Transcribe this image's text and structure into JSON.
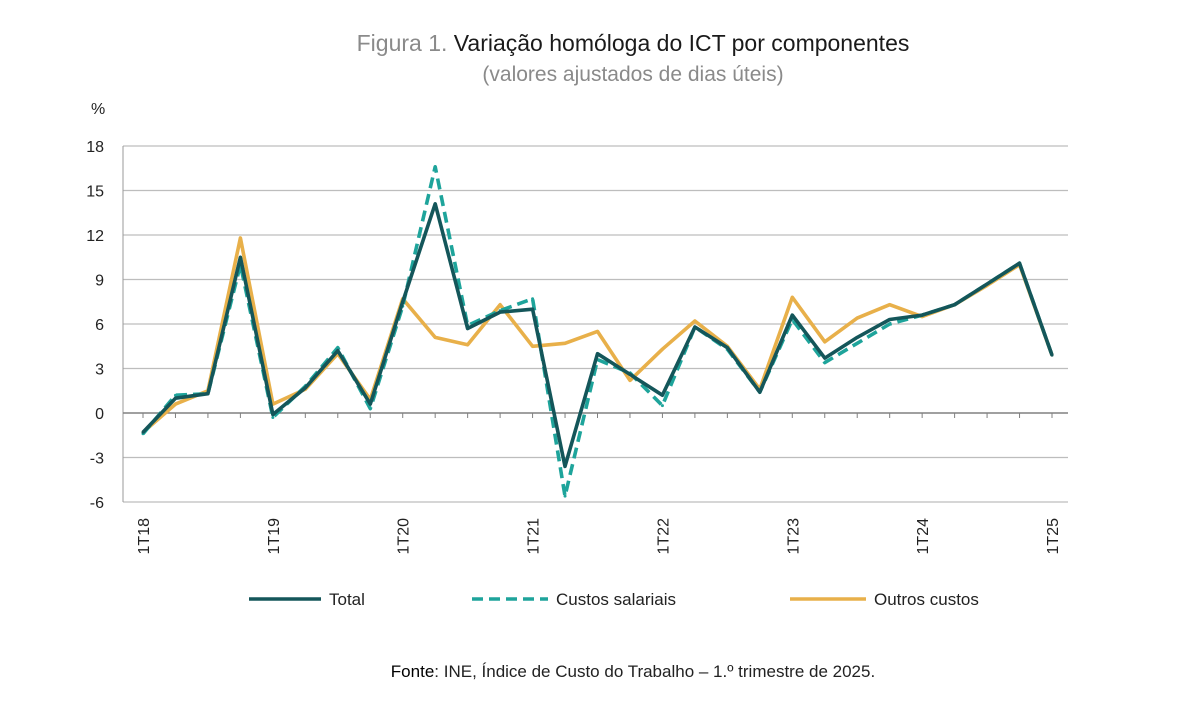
{
  "header": {
    "title_prefix": "Figura 1.",
    "title_main": "Variação homóloga do ICT por componentes",
    "subtitle": "(valores ajustados de dias úteis)"
  },
  "footer": {
    "source_label": "Fonte",
    "source_text": ": INE, Índice de Custo do Trabalho – 1.º trimestre de 2025."
  },
  "chart_data": {
    "type": "line",
    "ylabel": "%",
    "ylim": [
      -6,
      18
    ],
    "yticks": [
      -6,
      -3,
      0,
      3,
      6,
      9,
      12,
      15,
      18
    ],
    "ytick_labels": [
      "-6",
      "-3",
      "0",
      "3",
      "6",
      "9",
      "12",
      "15",
      "18"
    ],
    "grid": true,
    "legend_position": "bottom",
    "x": [
      "1T18",
      "2T18",
      "3T18",
      "4T18",
      "1T19",
      "2T19",
      "3T19",
      "4T19",
      "1T20",
      "2T20",
      "3T20",
      "4T20",
      "1T21",
      "2T21",
      "3T21",
      "4T21",
      "1T22",
      "2T22",
      "3T22",
      "4T22",
      "1T23",
      "2T23",
      "3T23",
      "4T23",
      "1T24",
      "2T24",
      "3T24",
      "4T24",
      "1T25"
    ],
    "x_tick_labels": [
      {
        "index": 0,
        "label": "1T18"
      },
      {
        "index": 4,
        "label": "1T19"
      },
      {
        "index": 8,
        "label": "1T20"
      },
      {
        "index": 12,
        "label": "1T21"
      },
      {
        "index": 16,
        "label": "1T22"
      },
      {
        "index": 20,
        "label": "1T23"
      },
      {
        "index": 24,
        "label": "1T24"
      },
      {
        "index": 28,
        "label": "1T25"
      }
    ],
    "series": [
      {
        "name": "Total",
        "color": "#14565a",
        "dash": "solid",
        "values": [
          -1.3,
          1.0,
          1.3,
          10.5,
          -0.1,
          1.7,
          4.2,
          0.6,
          7.5,
          14.1,
          5.7,
          6.8,
          7.0,
          -3.6,
          4.0,
          2.6,
          1.2,
          5.8,
          4.4,
          1.4,
          6.6,
          3.7,
          5.1,
          6.3,
          6.6,
          7.3,
          8.7,
          10.1,
          3.9
        ]
      },
      {
        "name": "Custos salariais",
        "color": "#1ea49b",
        "dash": "dashed",
        "values": [
          -1.4,
          1.2,
          1.3,
          10.0,
          -0.3,
          1.8,
          4.4,
          0.3,
          7.2,
          16.6,
          5.9,
          6.9,
          7.7,
          -5.6,
          3.6,
          2.7,
          0.5,
          5.8,
          4.3,
          1.4,
          6.3,
          3.4,
          4.7,
          6.0,
          6.6,
          7.3,
          8.7,
          10.1,
          3.9
        ]
      },
      {
        "name": "Outros custos",
        "color": "#e8b04a",
        "dash": "solid",
        "values": [
          -1.3,
          0.6,
          1.5,
          11.8,
          0.6,
          1.6,
          4.0,
          0.9,
          7.7,
          5.1,
          4.6,
          7.3,
          4.5,
          4.7,
          5.5,
          2.2,
          4.3,
          6.2,
          4.5,
          1.6,
          7.8,
          4.8,
          6.4,
          7.3,
          6.5,
          7.3,
          8.6,
          10.0,
          3.9
        ]
      }
    ]
  }
}
